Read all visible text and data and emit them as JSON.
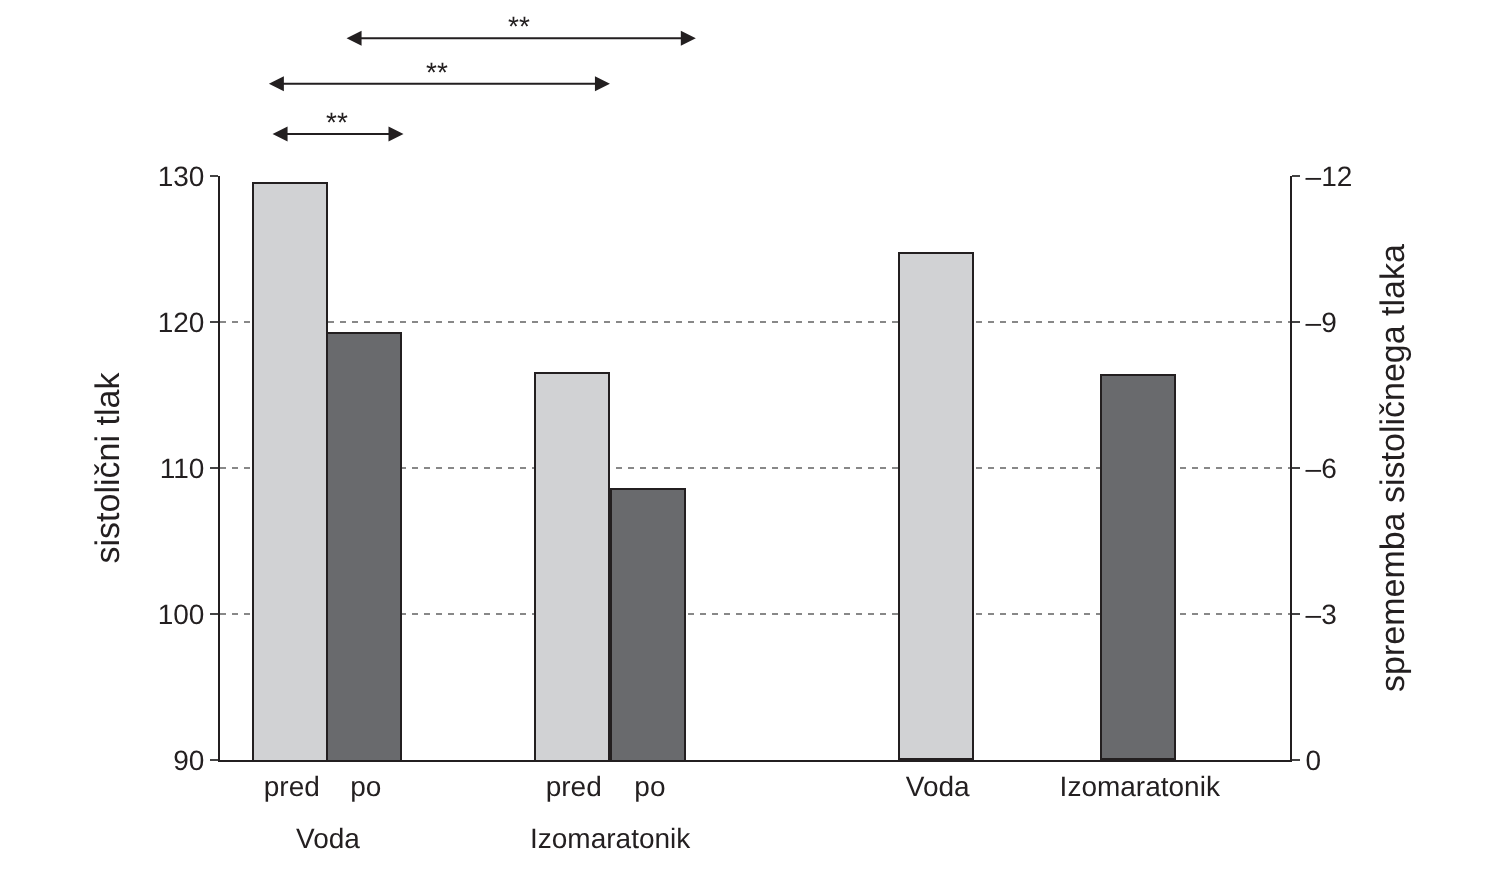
{
  "chart_data": {
    "type": "bar",
    "categories": [
      "pred",
      "po",
      "pred",
      "po",
      "Voda",
      "Izomaratonik"
    ],
    "series": [
      {
        "axis": "y",
        "colors": [
          "#d1d2d4",
          "#696a6d",
          "#d1d2d4",
          "#696a6d",
          "#d1d2d4",
          "#696a6d"
        ],
        "values": [
          129.5,
          119.2,
          116.4,
          108.5,
          null,
          null
        ]
      },
      {
        "axis": "y2",
        "colors": [
          "#d1d2d4",
          "#696a6d",
          "#d1d2d4",
          "#696a6d",
          "#d1d2d4",
          "#696a6d"
        ],
        "values": [
          null,
          null,
          null,
          null,
          -10.4,
          -7.9
        ]
      }
    ],
    "ylabel": "sistolični tlak",
    "y2label": "sprememba sistoličnega tlaka",
    "ylim": [
      90,
      130
    ],
    "yticks": [
      90,
      100,
      110,
      120,
      130
    ],
    "y2lim": [
      0,
      -12
    ],
    "y2ticks": [
      0,
      {
        "value": -3,
        "label": "–3"
      },
      {
        "value": -6,
        "label": "–6"
      },
      {
        "value": -9,
        "label": "–9"
      },
      {
        "value": -12,
        "label": "–12"
      }
    ],
    "annotations": [
      "Voda",
      "Izomaratonik",
      "**",
      "**",
      "**"
    ],
    "grid": "y"
  }
}
